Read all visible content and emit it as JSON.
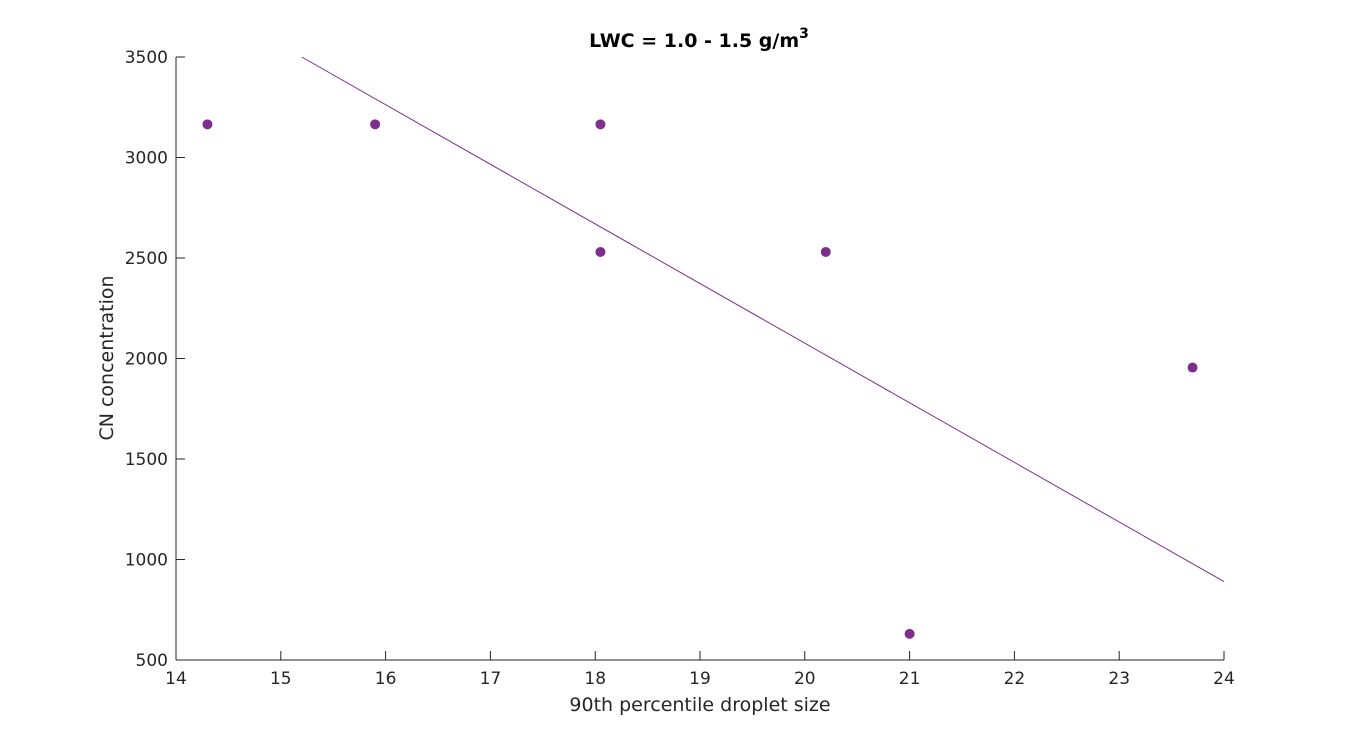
{
  "colors": {
    "marker": "#7E2F8E",
    "trend_line": "#7E2F8E",
    "axis": "#262626",
    "background": "#ffffff"
  },
  "chart_data": {
    "type": "scatter",
    "title": "LWC = 1.0 - 1.5 g/m",
    "title_superscript": "3",
    "xlabel": "90th percentile droplet size",
    "ylabel": "CN concentration",
    "xlim": [
      14,
      24
    ],
    "ylim": [
      500,
      3500
    ],
    "xticks": [
      14,
      15,
      16,
      17,
      18,
      19,
      20,
      21,
      22,
      23,
      24
    ],
    "yticks": [
      500,
      1000,
      1500,
      2000,
      2500,
      3000,
      3500
    ],
    "grid": false,
    "legend": "none",
    "series": [
      {
        "points": [
          {
            "x": 14.3,
            "y": 3165
          },
          {
            "x": 15.9,
            "y": 3165
          },
          {
            "x": 18.05,
            "y": 3165
          },
          {
            "x": 18.05,
            "y": 2530
          },
          {
            "x": 20.2,
            "y": 2530
          },
          {
            "x": 21.0,
            "y": 630
          },
          {
            "x": 23.7,
            "y": 1955
          }
        ]
      }
    ],
    "trend_line": {
      "x": [
        15.2,
        24.0
      ],
      "y": [
        3500,
        890
      ]
    }
  }
}
